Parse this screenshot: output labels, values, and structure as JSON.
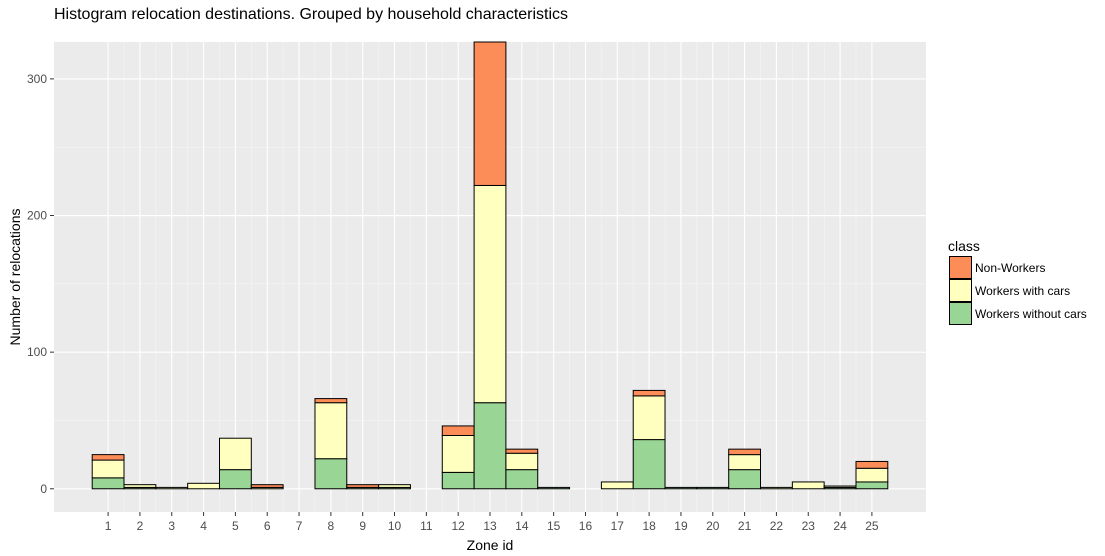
{
  "chart_data": {
    "type": "bar",
    "stacked": true,
    "title": "Histogram relocation destinations. Grouped by household characteristics",
    "xlabel": "Zone id",
    "ylabel": "Number of relocations",
    "ylim": [
      -17,
      327
    ],
    "yticks": [
      0,
      100,
      200,
      300
    ],
    "grid": true,
    "legend_position": "right",
    "legend_title": "class",
    "categories": [
      "1",
      "2",
      "3",
      "4",
      "5",
      "6",
      "7",
      "8",
      "9",
      "10",
      "11",
      "12",
      "13",
      "14",
      "15",
      "16",
      "17",
      "18",
      "19",
      "20",
      "21",
      "22",
      "23",
      "24",
      "25"
    ],
    "series": [
      {
        "name": "Workers without cars",
        "color": "#99d594",
        "values": [
          8,
          1,
          0,
          0,
          14,
          0,
          0,
          22,
          1,
          1,
          0,
          12,
          63,
          14,
          1,
          0,
          0,
          36,
          1,
          1,
          14,
          0,
          0,
          1,
          5
        ]
      },
      {
        "name": "Workers with cars",
        "color": "#ffffbf",
        "values": [
          13,
          2,
          1,
          4,
          23,
          1,
          0,
          41,
          0,
          2,
          0,
          27,
          159,
          12,
          0,
          0,
          5,
          32,
          0,
          0,
          11,
          1,
          5,
          1,
          10
        ]
      },
      {
        "name": "Non-Workers",
        "color": "#fc8d59",
        "values": [
          4,
          0,
          0,
          0,
          0,
          2,
          0,
          3,
          2,
          0,
          0,
          7,
          105,
          3,
          0,
          0,
          0,
          4,
          0,
          0,
          4,
          0,
          0,
          0,
          5
        ]
      }
    ]
  },
  "legend_order": [
    "Non-Workers",
    "Workers with cars",
    "Workers without cars"
  ]
}
